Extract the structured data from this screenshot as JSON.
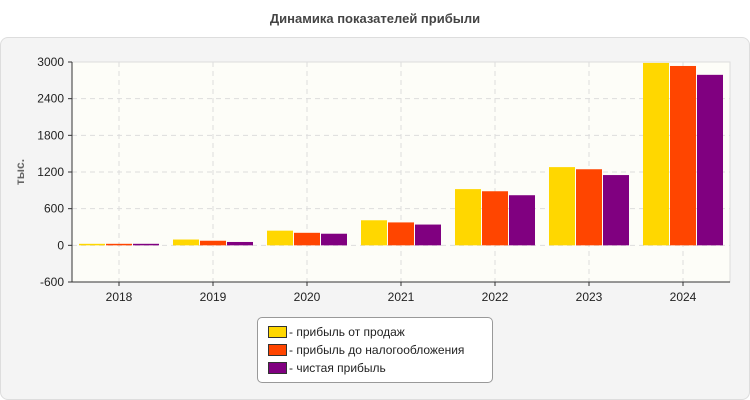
{
  "chart_data": {
    "type": "bar",
    "title": "Динамика показателей прибыли",
    "ylabel": "тыс.",
    "xlabel": "",
    "categories": [
      "2018",
      "2019",
      "2020",
      "2021",
      "2022",
      "2023",
      "2024"
    ],
    "ylim": [
      -600,
      3000
    ],
    "yticks": [
      -600,
      0,
      600,
      1200,
      1800,
      2400,
      3000
    ],
    "grid": true,
    "legend_position": "bottom",
    "series": [
      {
        "name": "- прибыль от продаж",
        "color": "#FFD700",
        "values": [
          25,
          95,
          240,
          410,
          920,
          1280,
          2985
        ]
      },
      {
        "name": "- прибыль до налогообложения",
        "color": "#FF4500",
        "values": [
          25,
          75,
          205,
          375,
          885,
          1245,
          2935
        ]
      },
      {
        "name": "- чистая прибыль",
        "color": "#800080",
        "values": [
          25,
          55,
          190,
          340,
          820,
          1150,
          2790
        ]
      }
    ]
  }
}
